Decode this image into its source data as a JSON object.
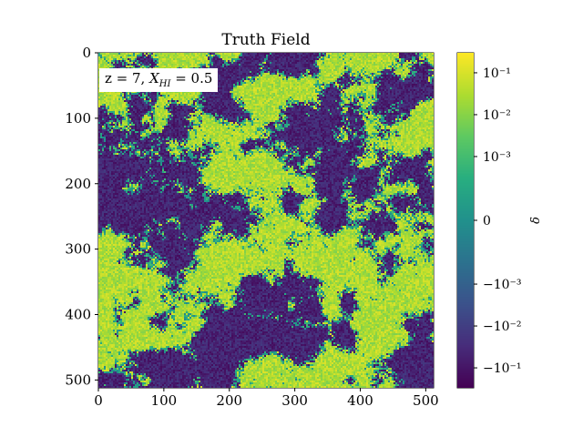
{
  "chart_data": {
    "type": "heatmap",
    "title": "Truth Field",
    "annotation": {
      "prefix": "z = 7, ",
      "var": "X",
      "sub": "HI",
      "suffix": " = 0.5"
    },
    "x_ticks": [
      "0",
      "100",
      "200",
      "300",
      "400",
      "500"
    ],
    "x_tick_values": [
      0,
      100,
      200,
      300,
      400,
      500
    ],
    "y_ticks": [
      "0",
      "100",
      "200",
      "300",
      "400",
      "500"
    ],
    "y_tick_values": [
      0,
      100,
      200,
      300,
      400,
      500
    ],
    "xlim": [
      0,
      512
    ],
    "ylim": [
      512,
      0
    ],
    "grid": false,
    "colormap": "viridis",
    "color_scale": "symlog",
    "colorbar": {
      "label": "δ",
      "ticks": [
        "10⁻¹",
        "10⁻²",
        "10⁻³",
        "0",
        "−10⁻³",
        "−10⁻²",
        "−10⁻¹"
      ],
      "tick_values": [
        0.1,
        0.01,
        0.001,
        0,
        -0.001,
        -0.01,
        -0.1
      ],
      "range": [
        -0.3,
        0.3
      ]
    }
  },
  "colors": {
    "viridis_stops": [
      "#440154",
      "#472d7b",
      "#3b528b",
      "#2c728e",
      "#21918c",
      "#28ae80",
      "#5ec962",
      "#addc30",
      "#fde725"
    ]
  }
}
